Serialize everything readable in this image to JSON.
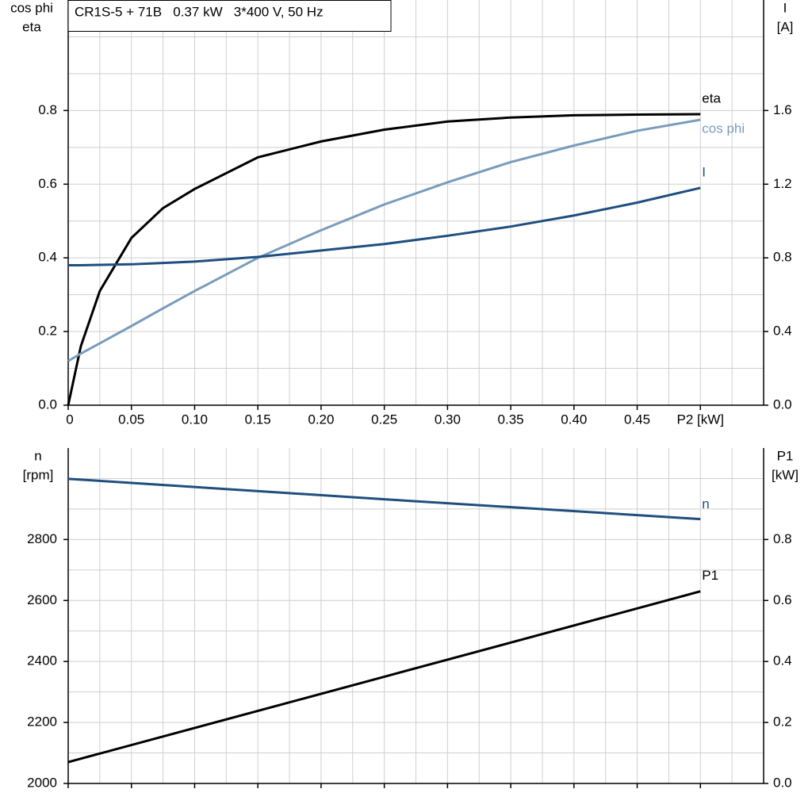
{
  "chart_data": [
    {
      "type": "line",
      "title": "CR1S-5 + 71B   0.37 kW   3*400 V, 50 Hz",
      "ylabel": [
        "cos phi",
        "eta"
      ],
      "y2label": [
        "I",
        "[A]"
      ],
      "x": [
        0,
        0.01,
        0.025,
        0.05,
        0.075,
        0.1,
        0.15,
        0.2,
        0.25,
        0.3,
        0.35,
        0.4,
        0.45,
        0.5
      ],
      "xlim": [
        0,
        0.55
      ],
      "xticks": [
        0,
        0.05,
        {
          "value": 0.1,
          "label": "0.10"
        },
        0.15,
        {
          "value": 0.2,
          "label": "0.20"
        },
        0.25,
        {
          "value": 0.3,
          "label": "0.30"
        },
        0.35,
        {
          "value": 0.4,
          "label": "0.40"
        },
        0.45,
        {
          "value": 0.5,
          "label": "P2 [kW]"
        }
      ],
      "ylim": [
        0,
        1.1
      ],
      "yticks": [
        {
          "value": 0,
          "label": "0.0"
        },
        0.2,
        0.4,
        0.6,
        0.8
      ],
      "y2lim": [
        0,
        2.2
      ],
      "y2ticks": [
        {
          "value": 0,
          "label": "0.0"
        },
        0.4,
        0.8,
        1.2,
        1.6
      ],
      "grid": true,
      "series": [
        {
          "name": "eta",
          "color": "#000000",
          "values": [
            0,
            0.16,
            0.31,
            0.454,
            0.535,
            0.587,
            0.673,
            0.716,
            0.748,
            0.77,
            0.781,
            0.787,
            0.789,
            0.79
          ]
        },
        {
          "name": "cos phi",
          "color": "#7a9cbb",
          "values": [
            0.12,
            0.14,
            0.168,
            0.215,
            0.263,
            0.31,
            0.4,
            0.475,
            0.545,
            0.605,
            0.66,
            0.705,
            0.745,
            0.775
          ]
        },
        {
          "name": "I",
          "color": "#1f4e7f",
          "axis": "y2",
          "values": [
            0.76,
            0.76,
            0.762,
            0.765,
            0.772,
            0.78,
            0.805,
            0.84,
            0.875,
            0.92,
            0.97,
            1.03,
            1.1,
            1.18
          ]
        }
      ]
    },
    {
      "type": "line",
      "ylabel": [
        "n",
        "[rpm]"
      ],
      "y2label": [
        "P1",
        "[kW]"
      ],
      "x": [
        0,
        0.25,
        0.5
      ],
      "xlim": [
        0,
        0.55
      ],
      "xticks": [
        0,
        0.05,
        0.1,
        0.15,
        0.2,
        0.25,
        0.3,
        0.35,
        0.4,
        0.45,
        0.5
      ],
      "xtick_labels": false,
      "ylim": [
        2000,
        3100
      ],
      "yticks": [
        2000,
        2200,
        2400,
        2600,
        2800
      ],
      "y2lim": [
        0,
        1.1
      ],
      "y2ticks": [
        {
          "value": 0,
          "label": "0.0"
        },
        0.2,
        0.4,
        0.6,
        0.8
      ],
      "grid": true,
      "series": [
        {
          "name": "n",
          "color": "#1f4e7f",
          "values": [
            2999,
            2932,
            2867
          ]
        },
        {
          "name": "P1",
          "color": "#000000",
          "axis": "y2",
          "values": [
            0.07,
            0.35,
            0.63
          ]
        }
      ]
    }
  ]
}
